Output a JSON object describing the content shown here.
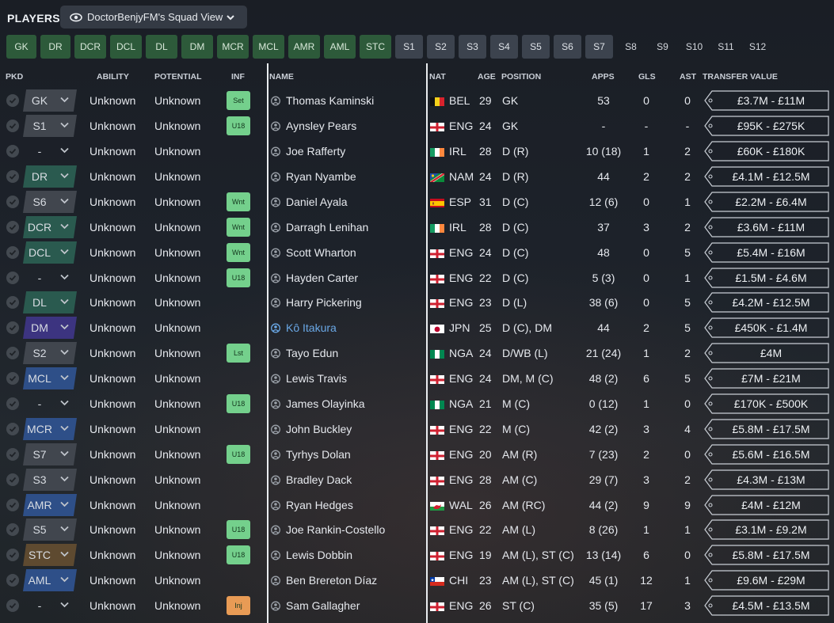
{
  "header": {
    "title": "PLAYERS",
    "view_label": "DoctorBenjyFM's Squad View"
  },
  "position_tabs": [
    {
      "label": "GK",
      "style": "g"
    },
    {
      "label": "DR",
      "style": "g"
    },
    {
      "label": "DCR",
      "style": "g"
    },
    {
      "label": "DCL",
      "style": "g"
    },
    {
      "label": "DL",
      "style": "g"
    },
    {
      "label": "DM",
      "style": "g"
    },
    {
      "label": "MCR",
      "style": "g"
    },
    {
      "label": "MCL",
      "style": "g"
    },
    {
      "label": "AMR",
      "style": "g"
    },
    {
      "label": "AML",
      "style": "g"
    },
    {
      "label": "STC",
      "style": "g"
    },
    {
      "label": "S1",
      "style": "s"
    },
    {
      "label": "S2",
      "style": "s"
    },
    {
      "label": "S3",
      "style": "s"
    },
    {
      "label": "S4",
      "style": "s"
    },
    {
      "label": "S5",
      "style": "s"
    },
    {
      "label": "S6",
      "style": "s"
    },
    {
      "label": "S7",
      "style": "s"
    },
    {
      "label": "S8",
      "style": "d"
    },
    {
      "label": "S9",
      "style": "d"
    },
    {
      "label": "S10",
      "style": "d"
    },
    {
      "label": "S11",
      "style": "d"
    },
    {
      "label": "S12",
      "style": "d"
    }
  ],
  "columns": {
    "pkd": "PKD",
    "ability": "ABILITY",
    "potential": "POTENTIAL",
    "inf": "INF",
    "name": "NAME",
    "nat": "NAT",
    "age": "AGE",
    "position": "POSITION",
    "apps": "APPS",
    "gls": "GLS",
    "ast": "AST",
    "transfer_value": "TRANSFER VALUE"
  },
  "colors": {
    "pkd_gray": "#41464e",
    "pkd_green": "#2a5a4f",
    "pkd_purple": "#3c3480",
    "pkd_blue": "#2e4f88",
    "pkd_brown": "#5e4a30",
    "inf_green": "#74d08c",
    "inf_orange": "#e89b55",
    "link": "#6aa8e6"
  },
  "players": [
    {
      "pkd": "GK",
      "pkd_color": "pkd_gray",
      "ability": "Unknown",
      "potential": "Unknown",
      "inf": "Set",
      "inf_color": "inf_green",
      "name": "Thomas Kaminski",
      "link": false,
      "flag": "BEL",
      "nat": "BEL",
      "age": "29",
      "position": "GK",
      "apps": "53",
      "gls": "0",
      "ast": "0",
      "value": "£3.7M - £11M"
    },
    {
      "pkd": "S1",
      "pkd_color": "pkd_gray",
      "ability": "Unknown",
      "potential": "Unknown",
      "inf": "U18",
      "inf_color": "inf_green",
      "name": "Aynsley Pears",
      "link": false,
      "flag": "ENG",
      "nat": "ENG",
      "age": "24",
      "position": "GK",
      "apps": "-",
      "gls": "-",
      "ast": "-",
      "value": "£95K - £275K"
    },
    {
      "pkd": "-",
      "pkd_color": "none",
      "ability": "Unknown",
      "potential": "Unknown",
      "inf": "",
      "inf_color": "",
      "name": "Joe Rafferty",
      "link": false,
      "flag": "IRL",
      "nat": "IRL",
      "age": "28",
      "position": "D (R)",
      "apps": "10 (18)",
      "gls": "1",
      "ast": "2",
      "value": "£60K - £180K"
    },
    {
      "pkd": "DR",
      "pkd_color": "pkd_green",
      "ability": "Unknown",
      "potential": "Unknown",
      "inf": "",
      "inf_color": "",
      "name": "Ryan Nyambe",
      "link": false,
      "flag": "NAM",
      "nat": "NAM",
      "age": "24",
      "position": "D (R)",
      "apps": "44",
      "gls": "2",
      "ast": "2",
      "value": "£4.1M - £12.5M"
    },
    {
      "pkd": "S6",
      "pkd_color": "pkd_gray",
      "ability": "Unknown",
      "potential": "Unknown",
      "inf": "Wnt",
      "inf_color": "inf_green",
      "name": "Daniel Ayala",
      "link": false,
      "flag": "ESP",
      "nat": "ESP",
      "age": "31",
      "position": "D (C)",
      "apps": "12 (6)",
      "gls": "0",
      "ast": "1",
      "value": "£2.2M - £6.4M"
    },
    {
      "pkd": "DCR",
      "pkd_color": "pkd_green",
      "ability": "Unknown",
      "potential": "Unknown",
      "inf": "Wnt",
      "inf_color": "inf_green",
      "name": "Darragh Lenihan",
      "link": false,
      "flag": "IRL",
      "nat": "IRL",
      "age": "28",
      "position": "D (C)",
      "apps": "37",
      "gls": "3",
      "ast": "2",
      "value": "£3.6M - £11M"
    },
    {
      "pkd": "DCL",
      "pkd_color": "pkd_green",
      "ability": "Unknown",
      "potential": "Unknown",
      "inf": "Wnt",
      "inf_color": "inf_green",
      "name": "Scott Wharton",
      "link": false,
      "flag": "ENG",
      "nat": "ENG",
      "age": "24",
      "position": "D (C)",
      "apps": "48",
      "gls": "0",
      "ast": "5",
      "value": "£5.4M - £16M"
    },
    {
      "pkd": "-",
      "pkd_color": "none",
      "ability": "Unknown",
      "potential": "Unknown",
      "inf": "U18",
      "inf_color": "inf_green",
      "name": "Hayden Carter",
      "link": false,
      "flag": "ENG",
      "nat": "ENG",
      "age": "22",
      "position": "D (C)",
      "apps": "5 (3)",
      "gls": "0",
      "ast": "1",
      "value": "£1.5M - £4.6M"
    },
    {
      "pkd": "DL",
      "pkd_color": "pkd_green",
      "ability": "Unknown",
      "potential": "Unknown",
      "inf": "",
      "inf_color": "",
      "name": "Harry Pickering",
      "link": false,
      "flag": "ENG",
      "nat": "ENG",
      "age": "23",
      "position": "D (L)",
      "apps": "38 (6)",
      "gls": "0",
      "ast": "5",
      "value": "£4.2M - £12.5M"
    },
    {
      "pkd": "DM",
      "pkd_color": "pkd_purple",
      "ability": "Unknown",
      "potential": "Unknown",
      "inf": "",
      "inf_color": "",
      "name": "Kô Itakura",
      "link": true,
      "flag": "JPN",
      "nat": "JPN",
      "age": "25",
      "position": "D (C), DM",
      "apps": "44",
      "gls": "2",
      "ast": "5",
      "value": "£450K - £1.4M"
    },
    {
      "pkd": "S2",
      "pkd_color": "pkd_gray",
      "ability": "Unknown",
      "potential": "Unknown",
      "inf": "Lst",
      "inf_color": "inf_green",
      "name": "Tayo Edun",
      "link": false,
      "flag": "NGA",
      "nat": "NGA",
      "age": "24",
      "position": "D/WB (L)",
      "apps": "21 (24)",
      "gls": "1",
      "ast": "2",
      "value": "£4M"
    },
    {
      "pkd": "MCL",
      "pkd_color": "pkd_blue",
      "ability": "Unknown",
      "potential": "Unknown",
      "inf": "",
      "inf_color": "",
      "name": "Lewis Travis",
      "link": false,
      "flag": "ENG",
      "nat": "ENG",
      "age": "24",
      "position": "DM, M (C)",
      "apps": "48 (2)",
      "gls": "6",
      "ast": "5",
      "value": "£7M - £21M"
    },
    {
      "pkd": "-",
      "pkd_color": "none",
      "ability": "Unknown",
      "potential": "Unknown",
      "inf": "U18",
      "inf_color": "inf_green",
      "name": "James Olayinka",
      "link": false,
      "flag": "NGA",
      "nat": "NGA",
      "age": "21",
      "position": "M (C)",
      "apps": "0 (12)",
      "gls": "1",
      "ast": "0",
      "value": "£170K - £500K"
    },
    {
      "pkd": "MCR",
      "pkd_color": "pkd_blue",
      "ability": "Unknown",
      "potential": "Unknown",
      "inf": "",
      "inf_color": "",
      "name": "John Buckley",
      "link": false,
      "flag": "ENG",
      "nat": "ENG",
      "age": "22",
      "position": "M (C)",
      "apps": "42 (2)",
      "gls": "3",
      "ast": "4",
      "value": "£5.8M - £17.5M"
    },
    {
      "pkd": "S7",
      "pkd_color": "pkd_gray",
      "ability": "Unknown",
      "potential": "Unknown",
      "inf": "U18",
      "inf_color": "inf_green",
      "name": "Tyrhys Dolan",
      "link": false,
      "flag": "ENG",
      "nat": "ENG",
      "age": "20",
      "position": "AM (R)",
      "apps": "7 (23)",
      "gls": "2",
      "ast": "0",
      "value": "£5.6M - £16.5M"
    },
    {
      "pkd": "S3",
      "pkd_color": "pkd_gray",
      "ability": "Unknown",
      "potential": "Unknown",
      "inf": "",
      "inf_color": "",
      "name": "Bradley Dack",
      "link": false,
      "flag": "ENG",
      "nat": "ENG",
      "age": "28",
      "position": "AM (C)",
      "apps": "29 (7)",
      "gls": "3",
      "ast": "2",
      "value": "£4.3M - £13M"
    },
    {
      "pkd": "AMR",
      "pkd_color": "pkd_blue",
      "ability": "Unknown",
      "potential": "Unknown",
      "inf": "",
      "inf_color": "",
      "name": "Ryan Hedges",
      "link": false,
      "flag": "WAL",
      "nat": "WAL",
      "age": "26",
      "position": "AM (RC)",
      "apps": "44 (2)",
      "gls": "9",
      "ast": "9",
      "value": "£4M - £12M"
    },
    {
      "pkd": "S5",
      "pkd_color": "pkd_gray",
      "ability": "Unknown",
      "potential": "Unknown",
      "inf": "U18",
      "inf_color": "inf_green",
      "name": "Joe Rankin-Costello",
      "link": false,
      "flag": "ENG",
      "nat": "ENG",
      "age": "22",
      "position": "AM (L)",
      "apps": "8 (26)",
      "gls": "1",
      "ast": "1",
      "value": "£3.1M - £9.2M"
    },
    {
      "pkd": "STC",
      "pkd_color": "pkd_brown",
      "ability": "Unknown",
      "potential": "Unknown",
      "inf": "U18",
      "inf_color": "inf_green",
      "name": "Lewis Dobbin",
      "link": false,
      "flag": "ENG",
      "nat": "ENG",
      "age": "19",
      "position": "AM (L), ST (C)",
      "apps": "13 (14)",
      "gls": "6",
      "ast": "0",
      "value": "£5.8M - £17.5M"
    },
    {
      "pkd": "AML",
      "pkd_color": "pkd_blue",
      "ability": "Unknown",
      "potential": "Unknown",
      "inf": "",
      "inf_color": "",
      "name": "Ben Brereton Díaz",
      "link": false,
      "flag": "CHI",
      "nat": "CHI",
      "age": "23",
      "position": "AM (L), ST (C)",
      "apps": "45 (1)",
      "gls": "12",
      "ast": "1",
      "value": "£9.6M - £29M"
    },
    {
      "pkd": "-",
      "pkd_color": "none",
      "ability": "Unknown",
      "potential": "Unknown",
      "inf": "Inj",
      "inf_color": "inf_orange",
      "name": "Sam Gallagher",
      "link": false,
      "flag": "ENG",
      "nat": "ENG",
      "age": "26",
      "position": "ST (C)",
      "apps": "35 (5)",
      "gls": "17",
      "ast": "3",
      "value": "£4.5M - £13.5M"
    }
  ]
}
